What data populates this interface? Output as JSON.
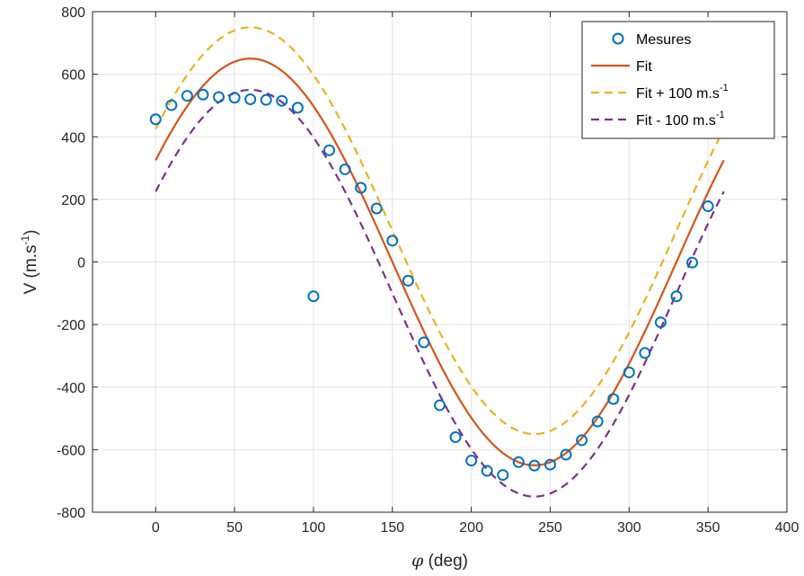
{
  "chart_data": {
    "type": "line",
    "xlabel_symbol": "φ",
    "xlabel_rest": " (deg)",
    "ylabel_main": "V (m.s",
    "ylabel_sup": "-1",
    "ylabel_close": ")",
    "xlim": [
      -40,
      400
    ],
    "ylim": [
      -800,
      800
    ],
    "xticks": [
      0,
      50,
      100,
      150,
      200,
      250,
      300,
      350,
      400
    ],
    "yticks": [
      -800,
      -600,
      -400,
      -200,
      0,
      200,
      400,
      600,
      800
    ],
    "grid": true,
    "legend_position": "top-right",
    "fit_model": {
      "amplitude": 650,
      "phase_deg": 30,
      "x_range": [
        0,
        360
      ]
    },
    "series": [
      {
        "name": "Mesures",
        "kind": "markers",
        "color": "#0072BD",
        "x": [
          0,
          10,
          20,
          30,
          40,
          50,
          60,
          70,
          80,
          90,
          100,
          110,
          120,
          130,
          140,
          150,
          160,
          170,
          180,
          190,
          200,
          210,
          220,
          230,
          240,
          250,
          260,
          270,
          280,
          290,
          300,
          310,
          320,
          330,
          340,
          350
        ],
        "y": [
          456,
          501,
          531,
          535,
          527,
          525,
          520,
          518,
          515,
          493,
          -110,
          357,
          296,
          237,
          171,
          68,
          -60,
          -257,
          -458,
          -560,
          -635,
          -668,
          -681,
          -640,
          -651,
          -648,
          -616,
          -570,
          -510,
          -438,
          -353,
          -291,
          -193,
          -110,
          -2,
          178
        ]
      },
      {
        "name": "Fit",
        "kind": "solid",
        "color": "#D95319",
        "offset": 0
      },
      {
        "name": "Fit + 100 m.s",
        "name_sup": "-1",
        "kind": "dashed",
        "color": "#EDB120",
        "offset": 100
      },
      {
        "name": "Fit - 100 m.s",
        "name_sup": "-1",
        "kind": "dashed",
        "color": "#7E2F8E",
        "offset": -100
      }
    ]
  }
}
